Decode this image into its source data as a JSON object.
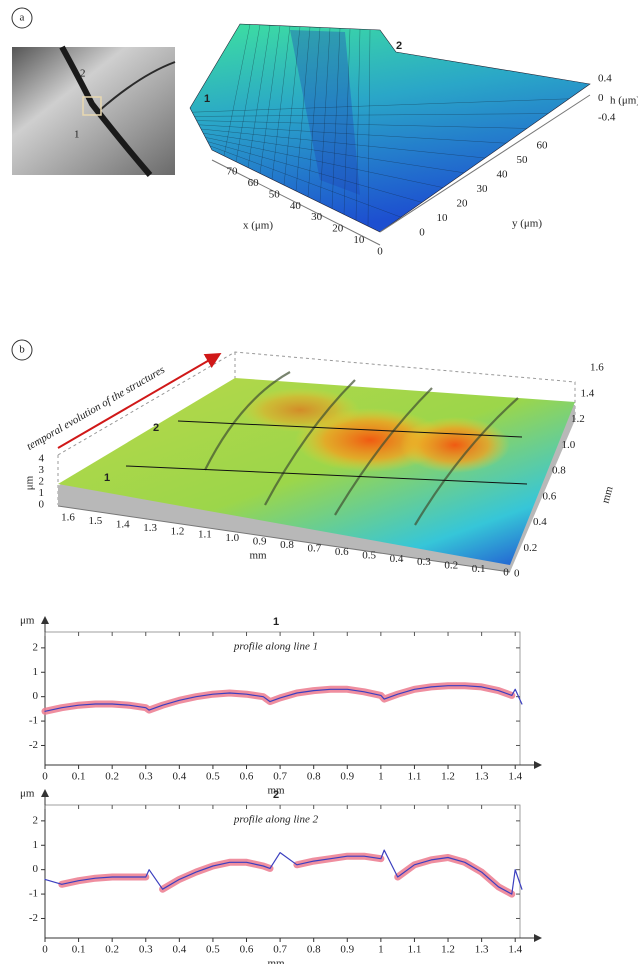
{
  "panel_a": {
    "label": "a",
    "photo_labels": [
      "2",
      "1"
    ],
    "surface_labels": [
      "1",
      "2"
    ],
    "x_axis": {
      "label": "x (μm)",
      "ticks": [
        70,
        60,
        50,
        40,
        30,
        20,
        10,
        0
      ]
    },
    "y_axis": {
      "label": "y (μm)",
      "ticks": [
        0,
        10,
        20,
        30,
        40,
        50,
        60
      ]
    },
    "h_axis": {
      "label": "h (μm)",
      "ticks": [
        0.4,
        0,
        -0.4
      ]
    }
  },
  "panel_b": {
    "label": "b",
    "arrow_text": "temporal evolution of the structures",
    "line_labels": [
      "1",
      "2"
    ],
    "z_axis": {
      "label": "μm",
      "ticks": [
        "4",
        "3",
        "2",
        "1",
        "0"
      ]
    },
    "x_axis": {
      "label": "mm",
      "ticks": [
        "1.6",
        "1.5",
        "1.4",
        "1.3",
        "1.2",
        "1.1",
        "1.0",
        "0.9",
        "0.8",
        "0.7",
        "0.6",
        "0.5",
        "0.4",
        "0.3",
        "0.2",
        "0.1",
        "0"
      ]
    },
    "y_axis": {
      "label": "mm",
      "ticks": [
        "0",
        "0.2",
        "0.4",
        "0.6",
        "0.8",
        "1.0",
        "1.2",
        "1.4",
        "1.6"
      ]
    }
  },
  "chart_data": [
    {
      "type": "line",
      "title": "1",
      "subtitle": "profile along line 1",
      "x_label": "mm",
      "y_label": "μm",
      "x": [
        0,
        0.05,
        0.1,
        0.15,
        0.2,
        0.25,
        0.3,
        0.31,
        0.35,
        0.4,
        0.45,
        0.5,
        0.55,
        0.6,
        0.65,
        0.67,
        0.7,
        0.75,
        0.8,
        0.85,
        0.9,
        0.95,
        1.0,
        1.01,
        1.05,
        1.1,
        1.15,
        1.2,
        1.25,
        1.3,
        1.35,
        1.39,
        1.4,
        1.42
      ],
      "series": [
        {
          "color": "#ec7a8e",
          "values": [
            -0.6,
            -0.45,
            -0.35,
            -0.3,
            -0.3,
            -0.35,
            -0.45,
            -0.55,
            -0.35,
            -0.15,
            0,
            0.1,
            0.15,
            0.1,
            0,
            -0.2,
            -0.05,
            0.15,
            0.25,
            0.3,
            0.3,
            0.2,
            0.05,
            -0.1,
            0.1,
            0.3,
            0.4,
            0.45,
            0.45,
            0.4,
            0.25,
            0.05,
            null,
            null
          ]
        },
        {
          "color": "#3b3fbf",
          "values": [
            -0.6,
            -0.45,
            -0.35,
            -0.3,
            -0.3,
            -0.35,
            -0.45,
            -0.55,
            -0.35,
            -0.15,
            0,
            0.1,
            0.15,
            0.1,
            0,
            -0.2,
            -0.05,
            0.15,
            0.25,
            0.3,
            0.3,
            0.2,
            0.05,
            -0.1,
            0.1,
            0.3,
            0.4,
            0.45,
            0.45,
            0.4,
            0.25,
            0.05,
            0.3,
            -0.3
          ]
        }
      ],
      "xlim": [
        0,
        1.45
      ],
      "xticks": [
        0,
        0.1,
        0.2,
        0.3,
        0.4,
        0.5,
        0.6,
        0.7,
        0.8,
        0.9,
        1,
        1.1,
        1.2,
        1.3,
        1.4
      ],
      "ylim": [
        -2.8,
        2.65
      ],
      "yticks": [
        -2,
        -1,
        0,
        1,
        2
      ]
    },
    {
      "type": "line",
      "title": "2",
      "subtitle": "profile along line 2",
      "x_label": "mm",
      "y_label": "μm",
      "x": [
        0,
        0.05,
        0.1,
        0.15,
        0.2,
        0.25,
        0.3,
        0.31,
        0.35,
        0.4,
        0.45,
        0.5,
        0.55,
        0.6,
        0.65,
        0.67,
        0.7,
        0.75,
        0.8,
        0.85,
        0.9,
        0.95,
        1.0,
        1.01,
        1.05,
        1.1,
        1.15,
        1.2,
        1.25,
        1.3,
        1.35,
        1.39,
        1.4,
        1.42
      ],
      "series": [
        {
          "color": "#ec7a8e",
          "values": [
            null,
            -0.6,
            -0.45,
            -0.35,
            -0.3,
            -0.3,
            -0.3,
            null,
            -0.8,
            -0.4,
            -0.1,
            0.15,
            0.3,
            0.3,
            0.15,
            0.05,
            null,
            0.2,
            0.35,
            0.45,
            0.55,
            0.55,
            0.45,
            null,
            -0.3,
            0.2,
            0.4,
            0.5,
            0.3,
            -0.1,
            -0.7,
            -1.0,
            null,
            null
          ]
        },
        {
          "color": "#3b3fbf",
          "values": [
            -0.4,
            -0.6,
            -0.45,
            -0.35,
            -0.3,
            -0.3,
            -0.3,
            0.0,
            -0.8,
            -0.4,
            -0.1,
            0.15,
            0.3,
            0.3,
            0.15,
            0.05,
            0.7,
            0.2,
            0.35,
            0.45,
            0.55,
            0.55,
            0.45,
            0.8,
            -0.3,
            0.2,
            0.4,
            0.5,
            0.3,
            -0.1,
            -0.7,
            -1.0,
            0.0,
            -0.8
          ]
        }
      ],
      "xlim": [
        0,
        1.45
      ],
      "xticks": [
        0,
        0.1,
        0.2,
        0.3,
        0.4,
        0.5,
        0.6,
        0.7,
        0.8,
        0.9,
        1,
        1.1,
        1.2,
        1.3,
        1.4
      ],
      "ylim": [
        -2.8,
        2.65
      ],
      "yticks": [
        -2,
        -1,
        0,
        1,
        2
      ]
    }
  ]
}
